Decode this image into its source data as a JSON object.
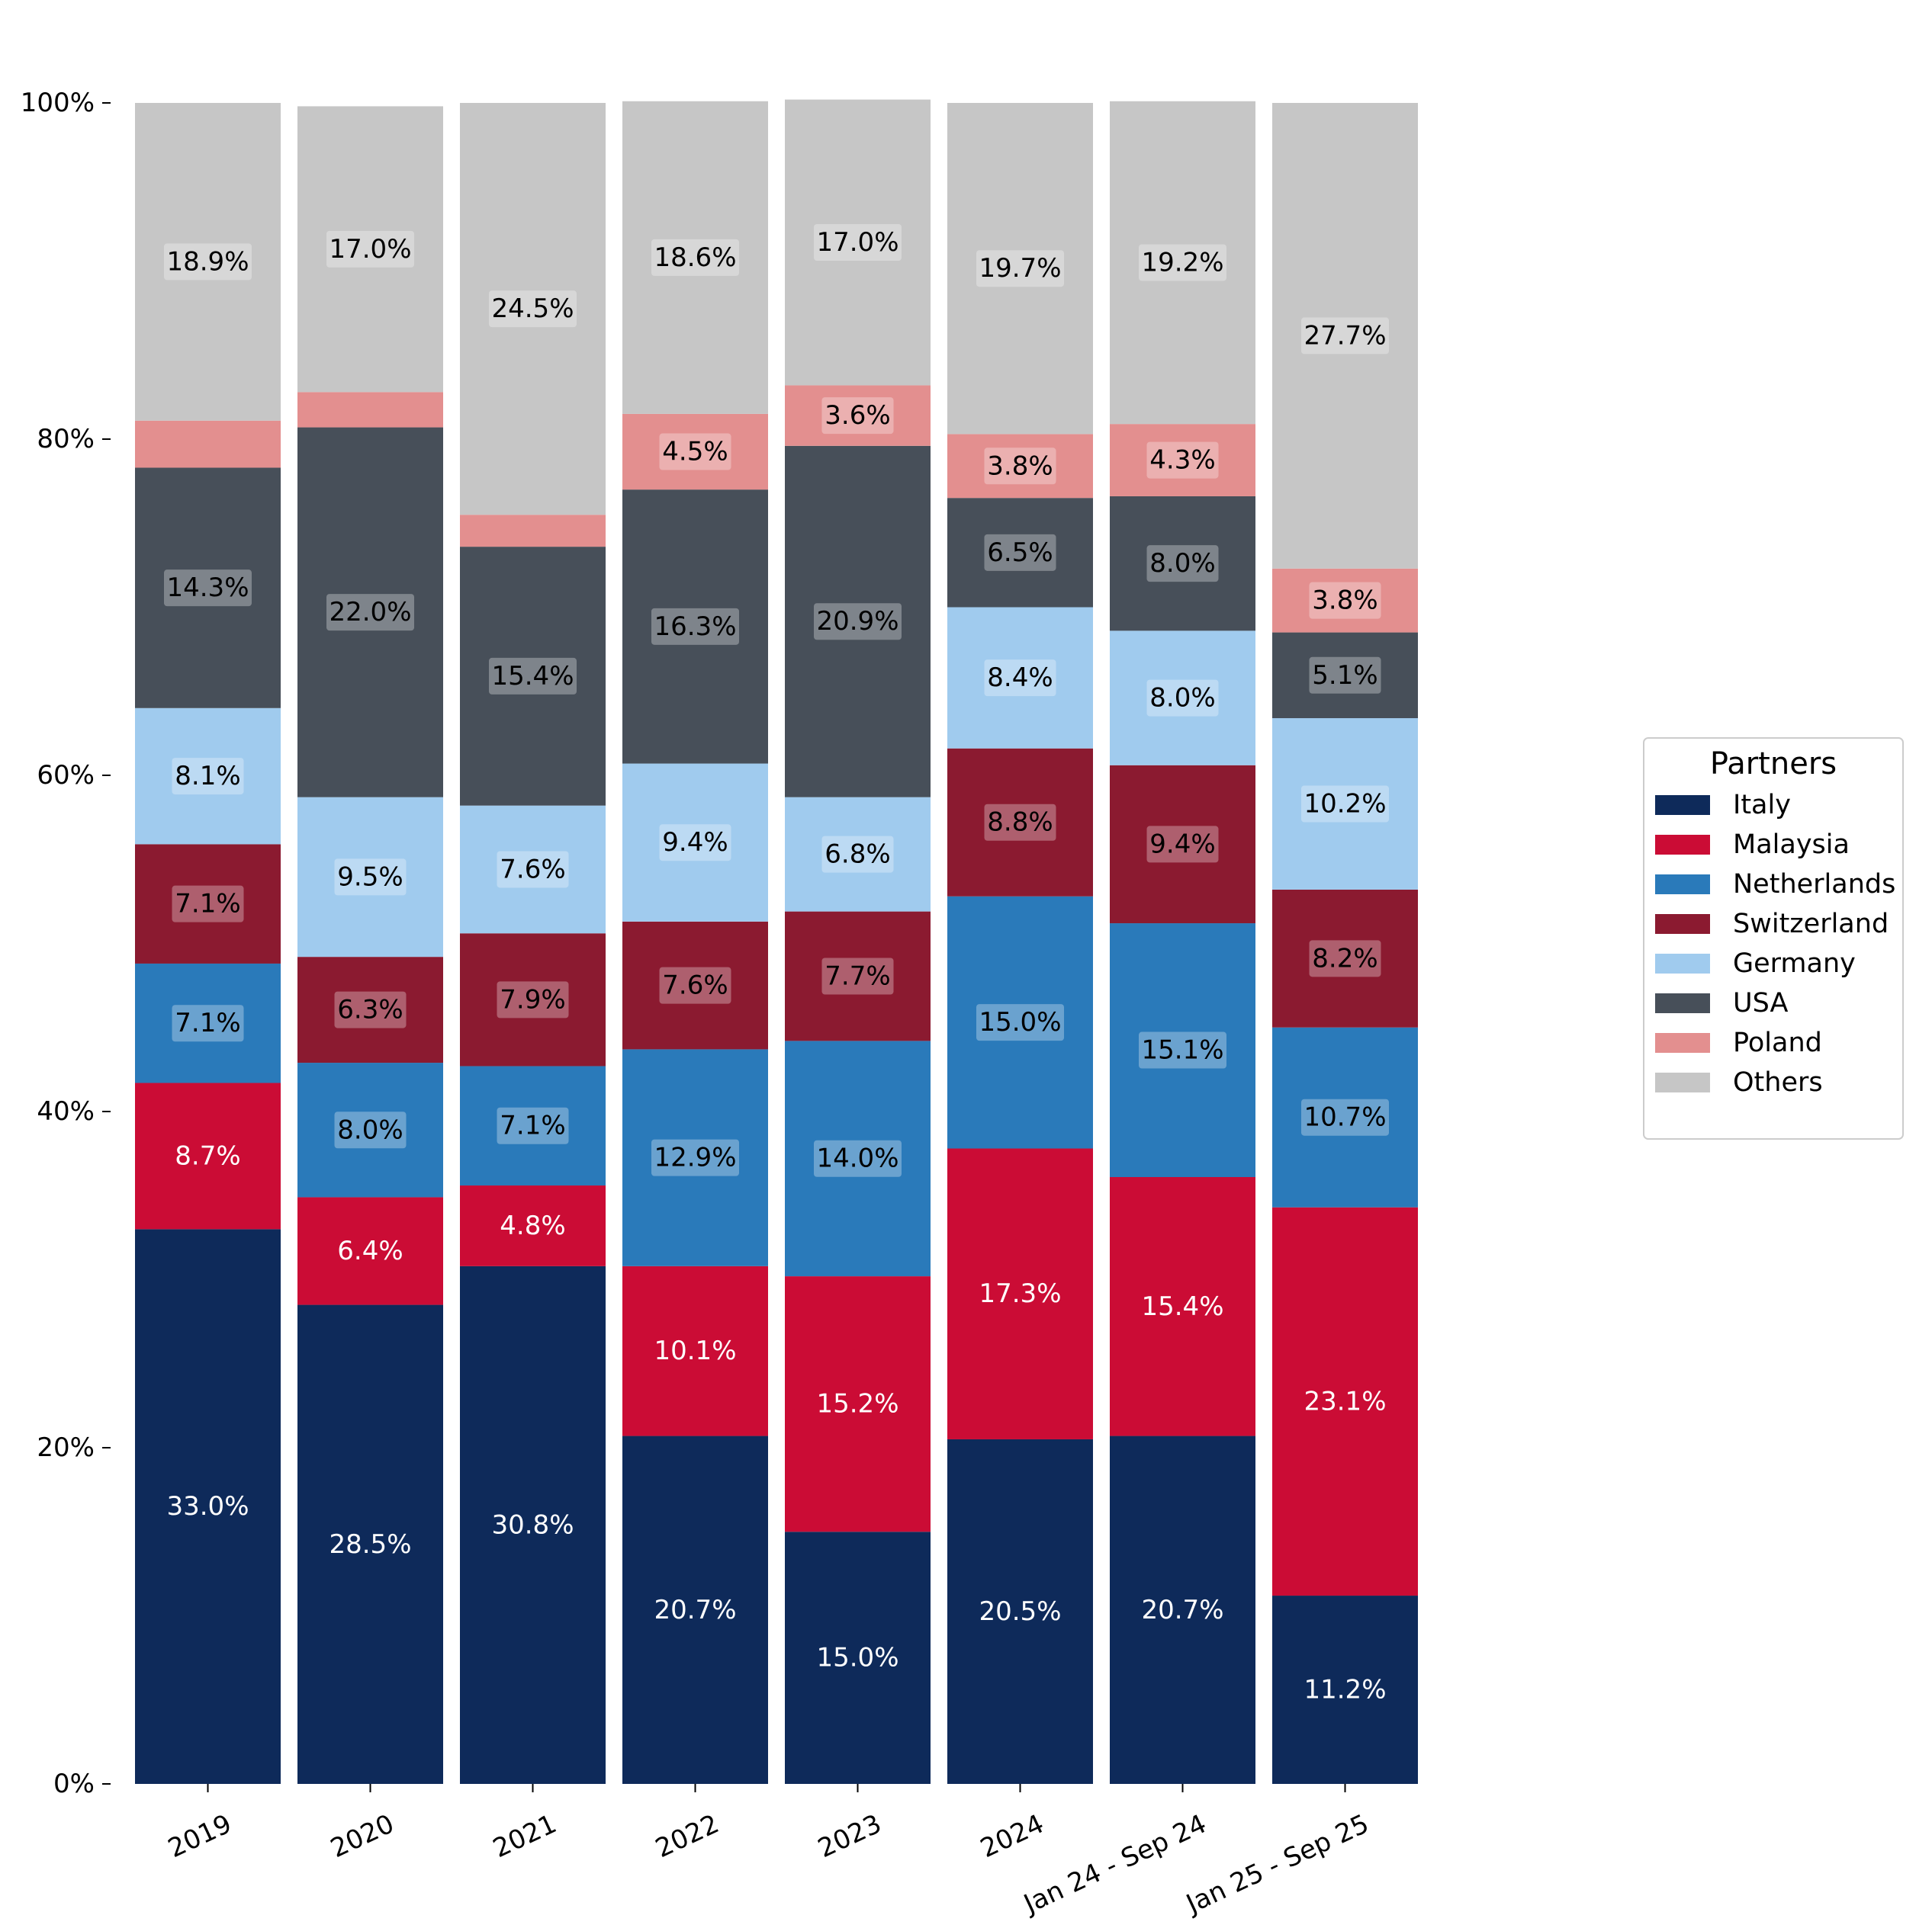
{
  "chart_data": {
    "type": "bar",
    "stacked": true,
    "normalized_percent": true,
    "categories": [
      "2019",
      "2020",
      "2021",
      "2022",
      "2023",
      "2024",
      "Jan 24 - Sep 24",
      "Jan 25 - Sep 25"
    ],
    "ylim": [
      0,
      100
    ],
    "y_ticks": [
      "0%",
      "20%",
      "40%",
      "60%",
      "80%",
      "100%"
    ],
    "legend": {
      "title": "Partners",
      "position": "right"
    },
    "series": [
      {
        "name": "Italy",
        "color": "#0e2a5a",
        "text_color": "#ffffff",
        "label_box": false,
        "values": [
          33.0,
          28.5,
          30.8,
          20.7,
          15.0,
          20.5,
          20.7,
          11.2
        ],
        "labels": [
          "33.0%",
          "28.5%",
          "30.8%",
          "20.7%",
          "15.0%",
          "20.5%",
          "20.7%",
          "11.2%"
        ]
      },
      {
        "name": "Malaysia",
        "color": "#cb0c35",
        "text_color": "#ffffff",
        "label_box": false,
        "values": [
          8.7,
          6.4,
          4.8,
          10.1,
          15.2,
          17.3,
          15.4,
          23.1
        ],
        "labels": [
          "8.7%",
          "6.4%",
          "4.8%",
          "10.1%",
          "15.2%",
          "17.3%",
          "15.4%",
          "23.1%"
        ]
      },
      {
        "name": "Netherlands",
        "color": "#2a7aba",
        "text_color": "#000000",
        "label_box": true,
        "values": [
          7.1,
          8.0,
          7.1,
          12.9,
          14.0,
          15.0,
          15.1,
          10.7
        ],
        "labels": [
          "7.1%",
          "8.0%",
          "7.1%",
          "12.9%",
          "14.0%",
          "15.0%",
          "15.1%",
          "10.7%"
        ]
      },
      {
        "name": "Switzerland",
        "color": "#8b1a30",
        "text_color": "#000000",
        "label_box": true,
        "values": [
          7.1,
          6.3,
          7.9,
          7.6,
          7.7,
          8.8,
          9.4,
          8.2
        ],
        "labels": [
          "7.1%",
          "6.3%",
          "7.9%",
          "7.6%",
          "7.7%",
          "8.8%",
          "9.4%",
          "8.2%"
        ]
      },
      {
        "name": "Germany",
        "color": "#a0cbee",
        "text_color": "#000000",
        "label_box": true,
        "values": [
          8.1,
          9.5,
          7.6,
          9.4,
          6.8,
          8.4,
          8.0,
          10.2
        ],
        "labels": [
          "8.1%",
          "9.5%",
          "7.6%",
          "9.4%",
          "6.8%",
          "8.4%",
          "8.0%",
          "10.2%"
        ]
      },
      {
        "name": "USA",
        "color": "#474f59",
        "text_color": "#000000",
        "label_box": true,
        "values": [
          14.3,
          22.0,
          15.4,
          16.3,
          20.9,
          6.5,
          8.0,
          5.1
        ],
        "labels": [
          "14.3%",
          "22.0%",
          "15.4%",
          "16.3%",
          "20.9%",
          "6.5%",
          "8.0%",
          "5.1%"
        ]
      },
      {
        "name": "Poland",
        "color": "#e38f8f",
        "text_color": "#000000",
        "label_box": true,
        "values": [
          2.8,
          2.1,
          1.9,
          4.5,
          3.6,
          3.8,
          4.3,
          3.8
        ],
        "labels": [
          "",
          "",
          "",
          "4.5%",
          "3.6%",
          "3.8%",
          "4.3%",
          "3.8%"
        ]
      },
      {
        "name": "Others",
        "color": "#c6c6c6",
        "text_color": "#000000",
        "label_box": true,
        "values": [
          18.9,
          17.0,
          24.5,
          18.6,
          17.0,
          19.7,
          19.2,
          27.7
        ],
        "labels": [
          "18.9%",
          "17.0%",
          "24.5%",
          "18.6%",
          "17.0%",
          "19.7%",
          "19.2%",
          "27.7%"
        ]
      }
    ]
  }
}
